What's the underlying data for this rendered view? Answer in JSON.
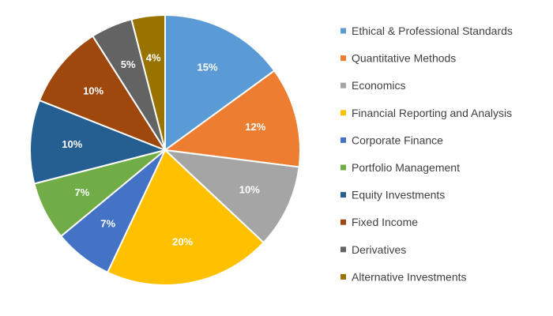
{
  "chart_data": {
    "type": "pie",
    "title": "",
    "legend_position": "right",
    "start_angle_deg": 0,
    "direction": "clockwise",
    "slices": [
      {
        "label": "Ethical & Professional Standards",
        "value": 15,
        "display": "15%",
        "color": "#5B9BD5"
      },
      {
        "label": "Quantitative Methods",
        "value": 12,
        "display": "12%",
        "color": "#ED7D31"
      },
      {
        "label": "Economics",
        "value": 10,
        "display": "10%",
        "color": "#A5A5A5"
      },
      {
        "label": "Financial Reporting and Analysis",
        "value": 20,
        "display": "20%",
        "color": "#FFC000"
      },
      {
        "label": "Corporate Finance",
        "value": 7,
        "display": "7%",
        "color": "#4472C4"
      },
      {
        "label": "Portfolio Management",
        "value": 7,
        "display": "7%",
        "color": "#70AD47"
      },
      {
        "label": "Equity Investments",
        "value": 10,
        "display": "10%",
        "color": "#255E91"
      },
      {
        "label": "Fixed Income",
        "value": 10,
        "display": "10%",
        "color": "#9E480E"
      },
      {
        "label": "Derivatives",
        "value": 5,
        "display": "5%",
        "color": "#636363"
      },
      {
        "label": "Alternative Investments",
        "value": 4,
        "display": "4%",
        "color": "#997300"
      }
    ]
  }
}
